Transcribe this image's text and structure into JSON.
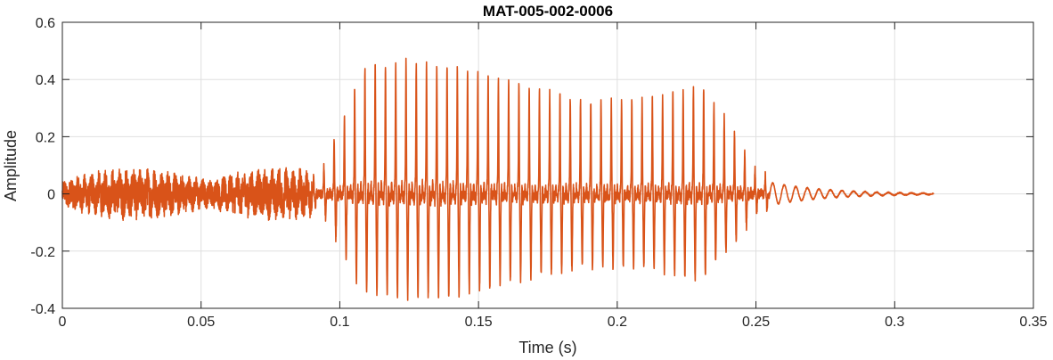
{
  "chart_data": {
    "type": "line",
    "title": "MAT-005-002-0006",
    "xlabel": "Time (s)",
    "ylabel": "Amplitude",
    "xlim": [
      0,
      0.35
    ],
    "ylim": [
      -0.4,
      0.6
    ],
    "xticks": [
      0,
      0.05,
      0.1,
      0.15,
      0.2,
      0.25,
      0.3,
      0.35
    ],
    "xtick_labels": [
      "0",
      "0.05",
      "0.1",
      "0.15",
      "0.2",
      "0.25",
      "0.3",
      "0.35"
    ],
    "yticks": [
      -0.4,
      -0.2,
      0,
      0.2,
      0.4,
      0.6
    ],
    "ytick_labels": [
      "-0.4",
      "-0.2",
      "0",
      "0.2",
      "0.4",
      "0.6"
    ],
    "grid": true,
    "line_color": "#D95319",
    "series": [
      {
        "x_start": 0,
        "x_end": 0.314,
        "segments": [
          {
            "t_start": 0.0,
            "t_end": 0.09,
            "kind": "noise",
            "amplitude": 0.09
          },
          {
            "t_start": 0.09,
            "t_end": 0.255,
            "kind": "periodic",
            "max": 0.45,
            "min": -0.37,
            "period": 0.0037
          },
          {
            "t_start": 0.255,
            "t_end": 0.314,
            "kind": "decay",
            "amplitude": 0.04
          }
        ]
      }
    ]
  }
}
